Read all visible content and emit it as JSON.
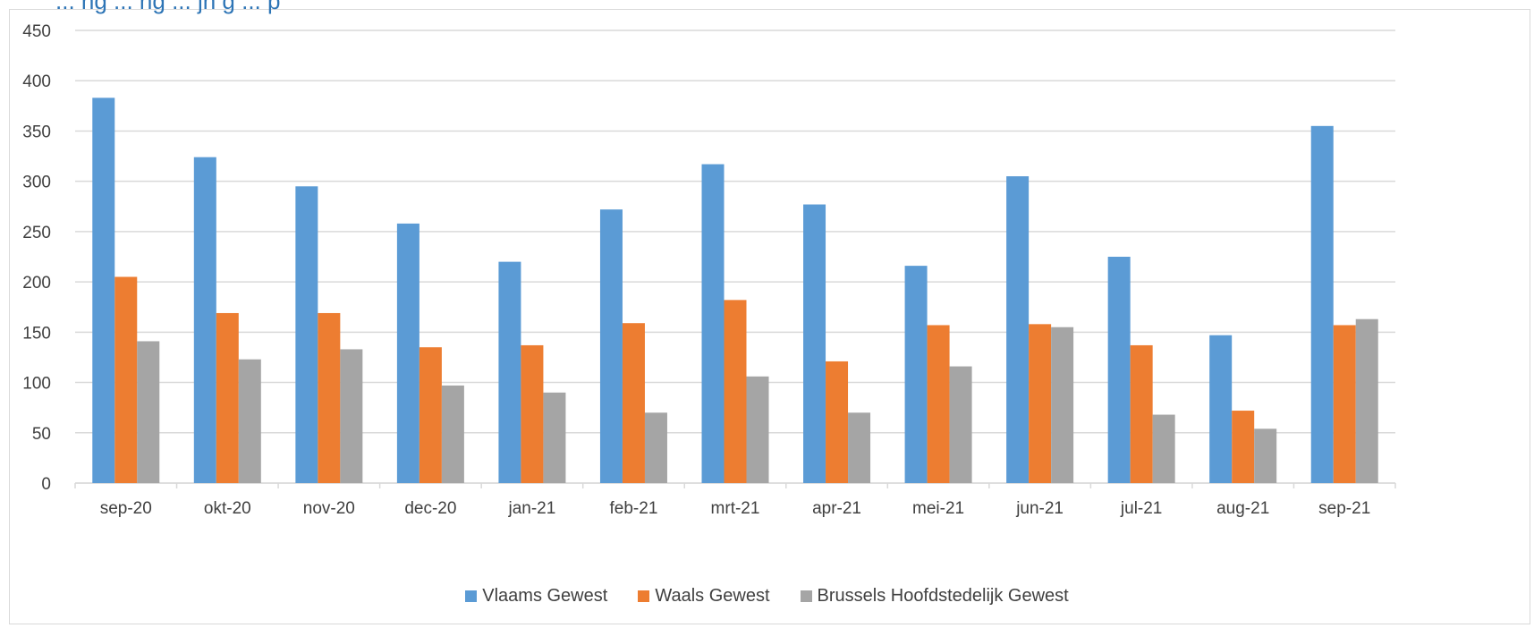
{
  "chart_data": {
    "type": "bar",
    "title": "... ng ... ng ... jn g ... p",
    "categories": [
      "sep-20",
      "okt-20",
      "nov-20",
      "dec-20",
      "jan-21",
      "feb-21",
      "mrt-21",
      "apr-21",
      "mei-21",
      "jun-21",
      "jul-21",
      "aug-21",
      "sep-21"
    ],
    "series": [
      {
        "name": "Vlaams Gewest",
        "color": "#5b9bd5",
        "values": [
          383,
          324,
          295,
          258,
          220,
          272,
          317,
          277,
          216,
          305,
          225,
          147,
          355
        ]
      },
      {
        "name": "Waals Gewest",
        "color": "#ed7d31",
        "values": [
          205,
          169,
          169,
          135,
          137,
          159,
          182,
          121,
          157,
          158,
          137,
          72,
          157
        ]
      },
      {
        "name": "Brussels Hoofdstedelijk Gewest",
        "color": "#a5a5a5",
        "values": [
          141,
          123,
          133,
          97,
          90,
          70,
          106,
          70,
          116,
          155,
          68,
          54,
          163
        ]
      }
    ],
    "ylim": [
      0,
      450
    ],
    "yticks": [
      0,
      50,
      100,
      150,
      200,
      250,
      300,
      350,
      400,
      450
    ],
    "grid": true,
    "legend_position": "bottom"
  }
}
